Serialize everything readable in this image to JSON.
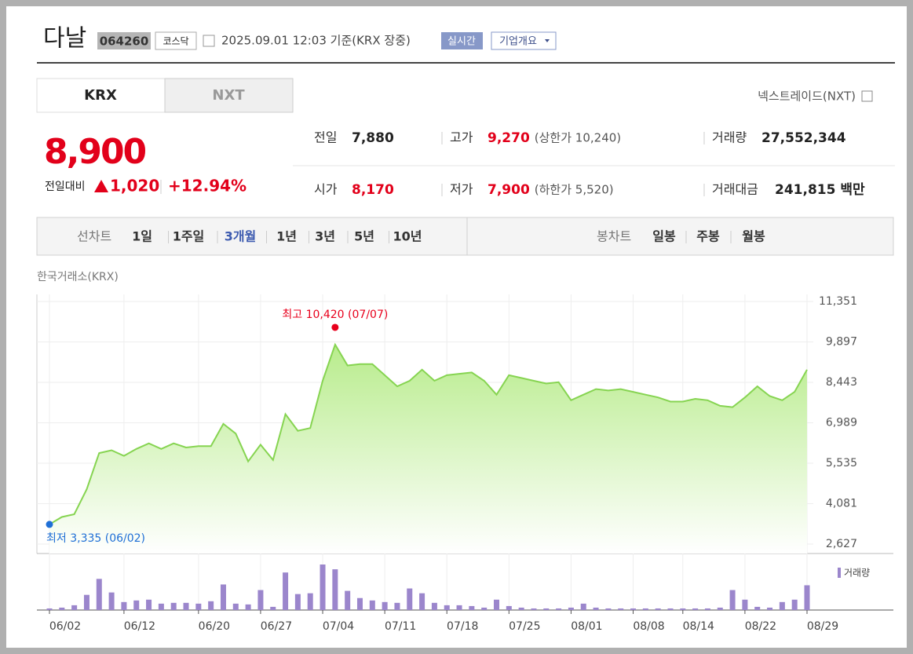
{
  "header": {
    "name": "다날",
    "code": "064260",
    "market": "코스닥",
    "timestamp": "2025.09.01 12:03 기준(KRX 장중)",
    "realtime": "실시간",
    "company_info": "기업개요"
  },
  "tabs": [
    "KRX",
    "NXT"
  ],
  "nxt_link": "넥스트레이드(NXT)",
  "price": {
    "current": "8,900",
    "change_label": "전일대비",
    "change": "1,020",
    "change_rate": "+12.94%"
  },
  "stats": [
    {
      "label": "전일",
      "value": "7,880"
    },
    {
      "label": "고가",
      "value": "9,270",
      "note": "(상한가 10,240)"
    },
    {
      "label": "거래량",
      "value": "27,552,344"
    },
    {
      "label": "시가",
      "value": "8,170"
    },
    {
      "label": "저가",
      "value": "7,900",
      "note": "(하한가 5,520)"
    },
    {
      "label": "거래대금",
      "value": "241,815 백만"
    }
  ],
  "period": {
    "line_label": "선차트",
    "line_options": [
      "1일",
      "1주일",
      "3개월",
      "1년",
      "3년",
      "5년",
      "10년"
    ],
    "candle_label": "봉차트",
    "candle_options": [
      "일봉",
      "주봉",
      "월봉"
    ]
  },
  "chart_data": {
    "type": "line",
    "source": "한국거래소(KRX)",
    "color": "#86d451",
    "categories": [
      "06/02",
      null,
      null,
      null,
      null,
      null,
      "06/12",
      null,
      null,
      null,
      null,
      null,
      "06/20",
      null,
      null,
      null,
      null,
      "06/27",
      null,
      null,
      null,
      null,
      "07/04",
      null,
      null,
      null,
      null,
      "07/11",
      null,
      null,
      null,
      null,
      "07/18",
      null,
      null,
      null,
      null,
      "07/25",
      null,
      null,
      null,
      null,
      "08/01",
      null,
      null,
      null,
      null,
      "08/08",
      null,
      null,
      null,
      "08/14",
      null,
      null,
      null,
      null,
      "08/22",
      null,
      null,
      null,
      null,
      "08/29"
    ],
    "values": [
      3335,
      3600,
      3700,
      4600,
      5900,
      6000,
      5800,
      6050,
      6250,
      6050,
      6250,
      6100,
      6150,
      6150,
      6950,
      6600,
      5600,
      6200,
      5650,
      7300,
      6700,
      6800,
      8500,
      9800,
      9050,
      9100,
      9100,
      8700,
      8300,
      8500,
      8900,
      8500,
      8700,
      8750,
      8800,
      8500,
      8000,
      8700,
      8600,
      8500,
      8400,
      8450,
      7800,
      8000,
      8200,
      8150,
      8200,
      8100,
      8000,
      7900,
      7750,
      7750,
      7850,
      7800,
      7600,
      7550,
      7900,
      8300,
      7950,
      7800,
      8100,
      8900
    ],
    "volume": {
      "name": "거래량",
      "color": "#9b86cc",
      "values": [
        2,
        3,
        6,
        19,
        39,
        22,
        10,
        12,
        13,
        8,
        9,
        9,
        8,
        11,
        32,
        8,
        7,
        25,
        4,
        47,
        20,
        21,
        57,
        51,
        24,
        15,
        12,
        10,
        9,
        27,
        21,
        9,
        6,
        6,
        5,
        3,
        13,
        5,
        3,
        2,
        2,
        2,
        3,
        8,
        3,
        2,
        2,
        2,
        2,
        2,
        2,
        2,
        2,
        2,
        3,
        25,
        13,
        4,
        3,
        10,
        13,
        31
      ]
    },
    "annotations": [
      {
        "text": "최고 10,420 (07/07)",
        "value": 10420,
        "color": "#e8001c"
      },
      {
        "text": "최저 3,335 (06/02)",
        "value": 3335,
        "color": "#1f6fd6"
      }
    ],
    "ylim": [
      2627,
      11351
    ],
    "yticks": [
      {
        "value": 2627,
        "label": "2,627"
      },
      {
        "value": 4081,
        "label": "4,081"
      },
      {
        "value": 5535,
        "label": "5,535"
      },
      {
        "value": 6989,
        "label": "6,989"
      },
      {
        "value": 8443,
        "label": "8,443"
      },
      {
        "value": 9897,
        "label": "9,897"
      },
      {
        "value": 11351,
        "label": "11,351"
      }
    ],
    "grid": true
  }
}
